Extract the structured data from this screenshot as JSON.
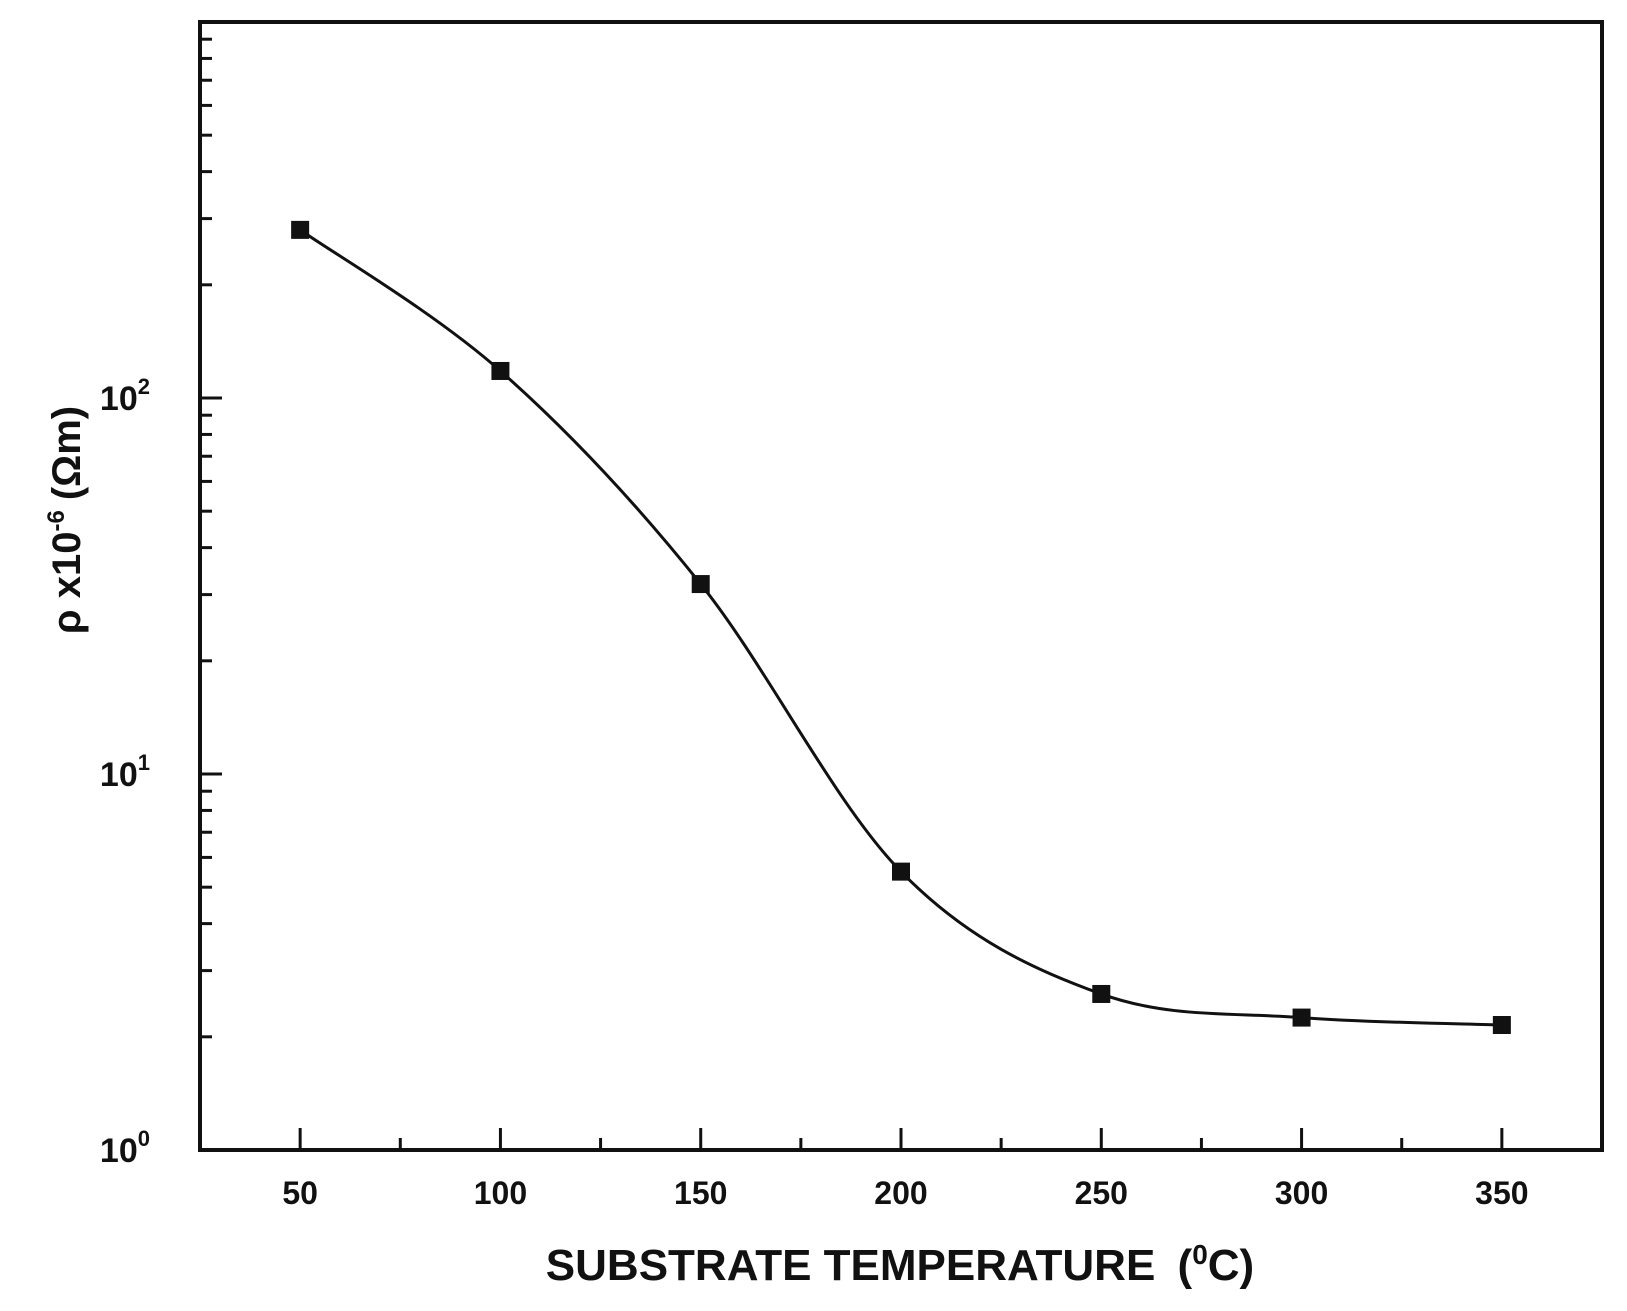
{
  "chart_data": {
    "type": "line",
    "title": "",
    "xlabel": "SUBSTRATE TEMPERATURE",
    "xlabel_unit": "C",
    "xlabel_unit_superscript": "0",
    "ylabel": "ρ x10",
    "ylabel_exponent": "-6",
    "ylabel_unit": "(Ωm)",
    "xlim": [
      25,
      375
    ],
    "ylim": [
      1,
      1000
    ],
    "y_scale": "log",
    "grid": false,
    "legend": "none",
    "x_ticks": [
      50,
      100,
      150,
      200,
      250,
      300,
      350
    ],
    "x_tick_labels": [
      "50",
      "100",
      "150",
      "200",
      "250",
      "300",
      "350"
    ],
    "x_minor_ticks": [
      75,
      125,
      175,
      225,
      275,
      325
    ],
    "y_ticks": [
      {
        "value": 1,
        "base": "10",
        "exp": "0"
      },
      {
        "value": 10,
        "base": "10",
        "exp": "1"
      },
      {
        "value": 100,
        "base": "10",
        "exp": "2"
      }
    ],
    "series": [
      {
        "marker": "square",
        "color": "#111111",
        "x": [
          50,
          100,
          150,
          200,
          250,
          300,
          350
        ],
        "y": [
          280,
          118,
          32,
          5.5,
          2.6,
          2.25,
          2.15
        ]
      }
    ]
  }
}
